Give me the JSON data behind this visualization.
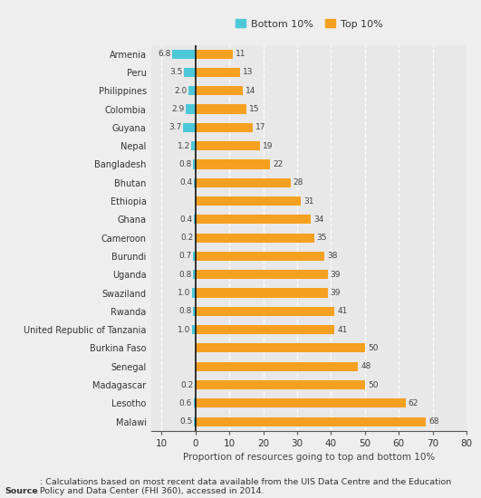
{
  "countries": [
    "Armenia",
    "Peru",
    "Philippines",
    "Colombia",
    "Guyana",
    "Nepal",
    "Bangladesh",
    "Bhutan",
    "Ethiopia",
    "Ghana",
    "Cameroon",
    "Burundi",
    "Uganda",
    "Swaziland",
    "Rwanda",
    "United Republic of Tanzania",
    "Burkina Faso",
    "Senegal",
    "Madagascar",
    "Lesotho",
    "Malawi"
  ],
  "bottom10": [
    6.8,
    3.5,
    2.0,
    2.9,
    3.7,
    1.2,
    0.8,
    0.4,
    0.0,
    0.4,
    0.2,
    0.7,
    0.8,
    1.0,
    0.8,
    1.0,
    0.0,
    0.0,
    0.2,
    0.6,
    0.5
  ],
  "top10": [
    11,
    13,
    14,
    15,
    17,
    19,
    22,
    28,
    31,
    34,
    35,
    38,
    39,
    39,
    41,
    41,
    50,
    48,
    50,
    62,
    68
  ],
  "bottom_color": "#4dc8d8",
  "top_color": "#f5a020",
  "bg_color": "#eeeeee",
  "plot_bg_color": "#e8e8e8",
  "xlabel": "Proportion of resources going to top and bottom 10%",
  "legend_bottom": "Bottom 10%",
  "legend_top": "Top 10%",
  "source_bold": "Source",
  "source_rest": ": Calculations based on most recent data available from the UIS Data Centre and the Education\nPolicy and Data Center (FHI 360), accessed in 2014.",
  "bar_height": 0.5,
  "xlim_left": -13,
  "xlim_right": 80,
  "xticks": [
    -10,
    0,
    10,
    20,
    30,
    40,
    50,
    60,
    70,
    80
  ],
  "xticklabels": [
    "10",
    "0",
    "10",
    "20",
    "30",
    "40",
    "50",
    "60",
    "70",
    "80"
  ],
  "dashed_xticks": [
    -10,
    10,
    20,
    30,
    40,
    50,
    60,
    70,
    80
  ]
}
